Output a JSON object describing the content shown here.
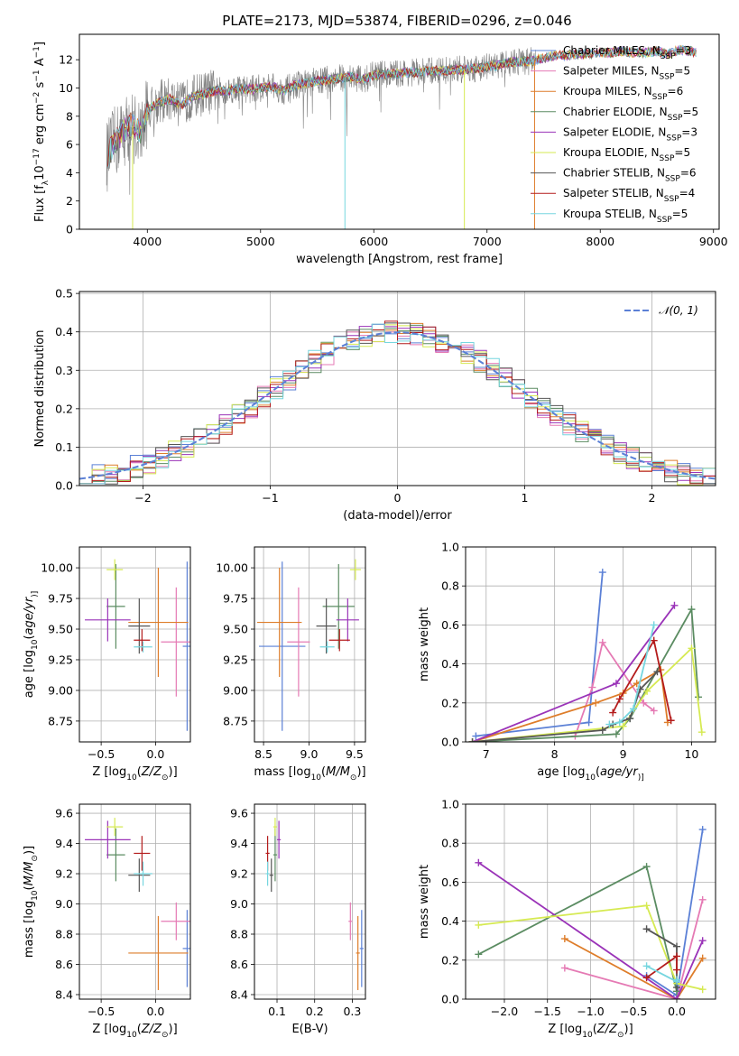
{
  "figure": {
    "title": "PLATE=2173, MJD=53874, FIBERID=0296, z=0.046"
  },
  "colors": {
    "Chabrier MILES": "#5b80d6",
    "Salpeter MILES": "#e57ab4",
    "Kroupa MILES": "#de7d2a",
    "Chabrier ELODIE": "#5b8c62",
    "Salpeter ELODIE": "#9a33b8",
    "Kroupa ELODIE": "#d6ea52",
    "Chabrier STELIB": "#555555",
    "Salpeter STELIB": "#b41c1c",
    "Kroupa STELIB": "#76d6df",
    "data": "#808080"
  },
  "chart_data": [
    {
      "id": "spectrum",
      "type": "line",
      "title": "PLATE=2173, MJD=53874, FIBERID=0296, z=0.046",
      "xlabel": "wavelength [Angstrom, rest frame]",
      "ylabel_parts": [
        "Flux [f",
        "λ",
        "10",
        "−17",
        " erg cm",
        "−2",
        " s",
        "−1",
        " A",
        "−1",
        "]"
      ],
      "xlim": [
        3400,
        9050
      ],
      "ylim": [
        0,
        13.8
      ],
      "xticks": [
        4000,
        5000,
        6000,
        7000,
        8000,
        9000
      ],
      "yticks": [
        0,
        2,
        4,
        6,
        8,
        10,
        12
      ],
      "grid": false,
      "legend_position": "right",
      "legend": [
        {
          "key": "Chabrier MILES",
          "label": "Chabrier MILES, N",
          "sub": "SSP",
          "eq": "=3"
        },
        {
          "key": "Salpeter MILES",
          "label": "Salpeter MILES, N",
          "sub": "SSP",
          "eq": "=5"
        },
        {
          "key": "Kroupa MILES",
          "label": "Kroupa MILES, N",
          "sub": "SSP",
          "eq": "=6"
        },
        {
          "key": "Chabrier ELODIE",
          "label": "Chabrier ELODIE, N",
          "sub": "SSP",
          "eq": "=5"
        },
        {
          "key": "Salpeter ELODIE",
          "label": "Salpeter ELODIE, N",
          "sub": "SSP",
          "eq": "=3"
        },
        {
          "key": "Kroupa ELODIE",
          "label": "Kroupa ELODIE, N",
          "sub": "SSP",
          "eq": "=5"
        },
        {
          "key": "Chabrier STELIB",
          "label": "Chabrier STELIB, N",
          "sub": "SSP",
          "eq": "=6"
        },
        {
          "key": "Salpeter STELIB",
          "label": "Salpeter STELIB, N",
          "sub": "SSP",
          "eq": "=4"
        },
        {
          "key": "Kroupa STELIB",
          "label": "Kroupa STELIB, N",
          "sub": "SSP",
          "eq": "=5"
        }
      ],
      "continuum": [
        [
          3650,
          5.2
        ],
        [
          3700,
          6.0
        ],
        [
          3750,
          6.5
        ],
        [
          3800,
          7.0
        ],
        [
          3850,
          7.4
        ],
        [
          3900,
          7.1
        ],
        [
          3950,
          6.9
        ],
        [
          4000,
          8.4
        ],
        [
          4100,
          9.0
        ],
        [
          4200,
          9.2
        ],
        [
          4300,
          8.8
        ],
        [
          4400,
          9.4
        ],
        [
          4500,
          9.6
        ],
        [
          4600,
          9.8
        ],
        [
          4700,
          9.8
        ],
        [
          4800,
          10.0
        ],
        [
          4900,
          9.9
        ],
        [
          5000,
          10.0
        ],
        [
          5100,
          10.1
        ],
        [
          5200,
          9.8
        ],
        [
          5300,
          10.2
        ],
        [
          5400,
          10.3
        ],
        [
          5500,
          10.5
        ],
        [
          5600,
          10.6
        ],
        [
          5700,
          10.7
        ],
        [
          5800,
          10.8
        ],
        [
          5900,
          10.6
        ],
        [
          6000,
          10.9
        ],
        [
          6100,
          11.0
        ],
        [
          6200,
          11.0
        ],
        [
          6300,
          11.1
        ],
        [
          6400,
          11.1
        ],
        [
          6500,
          11.2
        ],
        [
          6600,
          11.2
        ],
        [
          6700,
          11.3
        ],
        [
          6800,
          11.3
        ],
        [
          6900,
          11.4
        ],
        [
          7000,
          11.5
        ],
        [
          7100,
          11.6
        ],
        [
          7200,
          11.8
        ],
        [
          7300,
          11.9
        ],
        [
          7400,
          11.9
        ],
        [
          7500,
          12.1
        ],
        [
          7600,
          12.3
        ],
        [
          7700,
          12.3
        ],
        [
          7800,
          12.4
        ],
        [
          7900,
          12.4
        ],
        [
          8000,
          12.5
        ],
        [
          8100,
          12.5
        ],
        [
          8200,
          12.6
        ],
        [
          8300,
          12.5
        ],
        [
          8400,
          12.5
        ],
        [
          8500,
          12.6
        ],
        [
          8600,
          12.4
        ],
        [
          8700,
          12.7
        ],
        [
          8800,
          12.6
        ],
        [
          8850,
          12.5
        ]
      ],
      "data_range": [
        3640,
        7430
      ]
    },
    {
      "id": "residuals",
      "type": "histogram",
      "xlabel": "(data-model)/error",
      "ylabel": "Normed distribution",
      "xlim": [
        -2.5,
        2.5
      ],
      "ylim": [
        0,
        0.505
      ],
      "xticks": [
        -2,
        -1,
        0,
        1,
        2
      ],
      "yticks": [
        0.0,
        0.1,
        0.2,
        0.3,
        0.4,
        0.5
      ],
      "grid": true,
      "legend": "𝒩(0, 1)",
      "legend_position": "top-right",
      "bins": [
        -2.5,
        2.5,
        50
      ]
    },
    {
      "id": "age-z",
      "type": "errorbar",
      "xlabel_parts": [
        "Z [log",
        "10",
        "(",
        "Z/Z",
        "⊙",
        ")]"
      ],
      "ylabel_parts": [
        "age  [log",
        "10",
        "(",
        "age/yr",
        ")]"
      ],
      "xlim": [
        -0.7,
        0.32
      ],
      "ylim": [
        8.58,
        10.17
      ],
      "xticks": [
        -0.5,
        0.0
      ],
      "yticks": [
        8.75,
        9.0,
        9.25,
        9.5,
        9.75,
        10.0
      ],
      "grid": true
    },
    {
      "id": "age-mass",
      "type": "errorbar",
      "xlabel_parts": [
        "mass [log",
        "10",
        "(",
        "M/M",
        "⊙",
        ")]"
      ],
      "xlim": [
        8.4,
        9.62
      ],
      "ylim": [
        8.58,
        10.17
      ],
      "xticks": [
        8.5,
        9.0,
        9.5
      ],
      "yticks": [
        8.75,
        9.0,
        9.25,
        9.5,
        9.75,
        10.0
      ],
      "grid": true
    },
    {
      "id": "mw-age",
      "type": "line",
      "xlabel_parts": [
        "age  [log",
        "10",
        "(",
        "age/yr",
        ")]"
      ],
      "ylabel": "mass weight",
      "xlim": [
        6.7,
        10.35
      ],
      "ylim": [
        0,
        1.0
      ],
      "xticks": [
        7,
        8,
        9,
        10
      ],
      "yticks": [
        0.0,
        0.2,
        0.4,
        0.6,
        0.8,
        1.0
      ],
      "grid": true,
      "series": [
        {
          "key": "Chabrier MILES",
          "x": [
            6.85,
            8.5,
            8.7
          ],
          "y": [
            0.03,
            0.1,
            0.87
          ]
        },
        {
          "key": "Salpeter MILES",
          "x": [
            8.3,
            8.55,
            8.7,
            9.3,
            9.45
          ],
          "y": [
            0.03,
            0.28,
            0.51,
            0.2,
            0.16
          ]
        },
        {
          "key": "Kroupa MILES",
          "x": [
            6.8,
            8.6,
            9.0,
            9.2,
            9.55,
            9.65
          ],
          "y": [
            0.0,
            0.2,
            0.25,
            0.3,
            0.37,
            0.1
          ]
        },
        {
          "key": "Chabrier ELODIE",
          "x": [
            6.8,
            8.9,
            9.1,
            10.0,
            10.1
          ],
          "y": [
            0.0,
            0.04,
            0.12,
            0.68,
            0.23
          ]
        },
        {
          "key": "Salpeter ELODIE",
          "x": [
            6.8,
            8.9,
            9.75
          ],
          "y": [
            0.0,
            0.3,
            0.7
          ]
        },
        {
          "key": "Kroupa ELODIE",
          "x": [
            6.8,
            9.0,
            9.35,
            10.0,
            10.15
          ],
          "y": [
            0.0,
            0.08,
            0.26,
            0.48,
            0.05
          ]
        },
        {
          "key": "Chabrier STELIB",
          "x": [
            6.8,
            8.7,
            8.85,
            9.1,
            9.25,
            9.5
          ],
          "y": [
            0.0,
            0.06,
            0.09,
            0.12,
            0.27,
            0.36
          ]
        },
        {
          "key": "Salpeter STELIB",
          "x": [
            8.85,
            8.95,
            9.45,
            9.7
          ],
          "y": [
            0.15,
            0.22,
            0.52,
            0.11
          ]
        },
        {
          "key": "Kroupa STELIB",
          "x": [
            8.8,
            8.95,
            9.15,
            9.45
          ],
          "y": [
            0.09,
            0.1,
            0.17,
            0.6
          ]
        }
      ]
    },
    {
      "id": "mass-z",
      "type": "errorbar",
      "xlabel_parts": [
        "Z [log",
        "10",
        "(",
        "Z/Z",
        "⊙",
        ")]"
      ],
      "ylabel_parts": [
        "mass [log",
        "10",
        "(",
        "M/M",
        "⊙",
        ")]"
      ],
      "xlim": [
        -0.7,
        0.32
      ],
      "ylim": [
        8.37,
        9.66
      ],
      "xticks": [
        -0.5,
        0.0
      ],
      "yticks": [
        8.4,
        8.6,
        8.8,
        9.0,
        9.2,
        9.4,
        9.6
      ],
      "grid": true
    },
    {
      "id": "mass-ebv",
      "type": "errorbar",
      "xlabel": "E(B-V)",
      "xlim": [
        0.04,
        0.335
      ],
      "ylim": [
        8.37,
        9.66
      ],
      "xticks": [
        0.1,
        0.2,
        0.3
      ],
      "yticks": [
        8.4,
        8.6,
        8.8,
        9.0,
        9.2,
        9.4,
        9.6
      ],
      "grid": true
    },
    {
      "id": "mw-z",
      "type": "line",
      "xlabel_parts": [
        "Z [log",
        "10",
        "(",
        "Z/Z",
        "⊙",
        ")]"
      ],
      "ylabel": "mass weight",
      "xlim": [
        -2.45,
        0.45
      ],
      "ylim": [
        0,
        1.0
      ],
      "xticks": [
        -2.0,
        -1.5,
        -1.0,
        -0.5,
        0.0
      ],
      "yticks": [
        0.0,
        0.2,
        0.4,
        0.6,
        0.8,
        1.0
      ],
      "grid": true,
      "series": [
        {
          "key": "Chabrier MILES",
          "x": [
            -0.35,
            0.0,
            0.3
          ],
          "y": [
            0.12,
            0.02,
            0.87
          ]
        },
        {
          "key": "Salpeter MILES",
          "x": [
            -1.3,
            0.0,
            0.3
          ],
          "y": [
            0.16,
            0.0,
            0.51
          ]
        },
        {
          "key": "Kroupa MILES",
          "x": [
            -1.3,
            0.0,
            0.3
          ],
          "y": [
            0.31,
            0.0,
            0.21
          ]
        },
        {
          "key": "Chabrier ELODIE",
          "x": [
            -2.3,
            -0.35,
            0.0
          ],
          "y": [
            0.23,
            0.68,
            0.04
          ]
        },
        {
          "key": "Salpeter ELODIE",
          "x": [
            -2.3,
            0.0,
            0.3
          ],
          "y": [
            0.7,
            0.0,
            0.3
          ]
        },
        {
          "key": "Kroupa ELODIE",
          "x": [
            -2.3,
            -0.35,
            0.0,
            0.3
          ],
          "y": [
            0.38,
            0.48,
            0.08,
            0.05
          ]
        },
        {
          "key": "Chabrier STELIB",
          "x": [
            -0.35,
            0.0,
            0.0
          ],
          "y": [
            0.36,
            0.27,
            0.06
          ]
        },
        {
          "key": "Salpeter STELIB",
          "x": [
            -0.35,
            0.0,
            0.0
          ],
          "y": [
            0.11,
            0.22,
            0.15
          ]
        },
        {
          "key": "Kroupa STELIB",
          "x": [
            -0.35,
            0.0,
            0.0
          ],
          "y": [
            0.17,
            0.09,
            0.1
          ]
        }
      ]
    }
  ],
  "fits": [
    {
      "key": "Chabrier MILES",
      "z": [
        0.25,
        0.33
      ],
      "age": [
        8.67,
        10.05
      ],
      "mass": [
        8.45,
        8.96
      ],
      "ebv": [
        0.32,
        0.33
      ]
    },
    {
      "key": "Salpeter MILES",
      "z": [
        0.05,
        0.33
      ],
      "age": [
        8.95,
        9.84
      ],
      "mass": [
        8.76,
        9.01
      ],
      "ebv": [
        0.29,
        0.3
      ]
    },
    {
      "key": "Kroupa MILES",
      "z": [
        -0.25,
        0.3
      ],
      "age": [
        9.11,
        10.0
      ],
      "mass": [
        8.43,
        8.92
      ],
      "ebv": [
        0.31,
        0.32
      ]
    },
    {
      "key": "Chabrier ELODIE",
      "z": [
        -0.45,
        -0.28
      ],
      "age": [
        9.34,
        10.03
      ],
      "mass": [
        9.15,
        9.5
      ],
      "ebv": [
        0.09,
        0.1
      ]
    },
    {
      "key": "Salpeter ELODIE",
      "z": [
        -0.65,
        -0.23
      ],
      "age": [
        9.4,
        9.75
      ],
      "mass": [
        9.3,
        9.55
      ],
      "ebv": [
        0.1,
        0.11
      ]
    },
    {
      "key": "Kroupa ELODIE",
      "z": [
        -0.45,
        -0.3
      ],
      "age": [
        9.9,
        10.07
      ],
      "mass": [
        9.45,
        9.57
      ],
      "ebv": [
        0.09,
        0.1
      ]
    },
    {
      "key": "Chabrier STELIB",
      "z": [
        -0.25,
        -0.05
      ],
      "age": [
        9.3,
        9.75
      ],
      "mass": [
        9.08,
        9.3
      ],
      "ebv": [
        0.08,
        0.09
      ]
    },
    {
      "key": "Salpeter STELIB",
      "z": [
        -0.2,
        -0.05
      ],
      "age": [
        9.32,
        9.5
      ],
      "mass": [
        9.22,
        9.45
      ],
      "ebv": [
        0.07,
        0.08
      ]
    },
    {
      "key": "Kroupa STELIB",
      "z": [
        -0.2,
        -0.03
      ],
      "age": [
        9.31,
        9.4
      ],
      "mass": [
        9.12,
        9.28
      ],
      "ebv": [
        0.07,
        0.08
      ]
    }
  ]
}
